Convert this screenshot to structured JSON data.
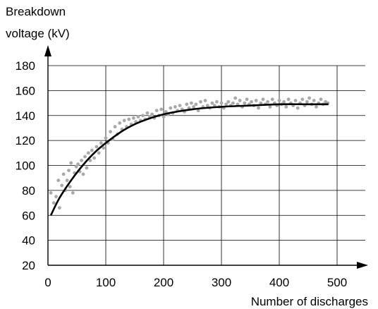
{
  "chart_data": {
    "type": "scatter",
    "ylabel_line1": "Breakdown",
    "ylabel_line2": "voltage (kV)",
    "xlabel": "Number of discharges",
    "xlim": [
      0,
      500
    ],
    "ylim": [
      20,
      180
    ],
    "xticks": [
      0,
      100,
      200,
      300,
      400,
      500
    ],
    "yticks": [
      20,
      40,
      60,
      80,
      100,
      120,
      140,
      160,
      180
    ],
    "grid": true,
    "points": [
      [
        5,
        78
      ],
      [
        10,
        70
      ],
      [
        14,
        75
      ],
      [
        18,
        88
      ],
      [
        20,
        66
      ],
      [
        24,
        84
      ],
      [
        27,
        93
      ],
      [
        30,
        80
      ],
      [
        33,
        88
      ],
      [
        36,
        96
      ],
      [
        38,
        83
      ],
      [
        40,
        102
      ],
      [
        43,
        78
      ],
      [
        46,
        94
      ],
      [
        49,
        99
      ],
      [
        52,
        101
      ],
      [
        55,
        95
      ],
      [
        58,
        104
      ],
      [
        61,
        93
      ],
      [
        64,
        107
      ],
      [
        67,
        98
      ],
      [
        70,
        110
      ],
      [
        73,
        104
      ],
      [
        76,
        112
      ],
      [
        80,
        106
      ],
      [
        84,
        115
      ],
      [
        88,
        110
      ],
      [
        92,
        118
      ],
      [
        96,
        114
      ],
      [
        100,
        122
      ],
      [
        104,
        118
      ],
      [
        108,
        127
      ],
      [
        112,
        121
      ],
      [
        116,
        131
      ],
      [
        120,
        125
      ],
      [
        124,
        134
      ],
      [
        128,
        129
      ],
      [
        132,
        136
      ],
      [
        136,
        131
      ],
      [
        140,
        137
      ],
      [
        144,
        133
      ],
      [
        148,
        138
      ],
      [
        152,
        135
      ],
      [
        156,
        139
      ],
      [
        160,
        136
      ],
      [
        164,
        140
      ],
      [
        168,
        137
      ],
      [
        172,
        142
      ],
      [
        176,
        139
      ],
      [
        180,
        141
      ],
      [
        184,
        138
      ],
      [
        188,
        144
      ],
      [
        192,
        140
      ],
      [
        196,
        145
      ],
      [
        200,
        139
      ],
      [
        204,
        143
      ],
      [
        208,
        141
      ],
      [
        212,
        146
      ],
      [
        216,
        142
      ],
      [
        220,
        147
      ],
      [
        224,
        144
      ],
      [
        228,
        148
      ],
      [
        232,
        145
      ],
      [
        236,
        143
      ],
      [
        240,
        149
      ],
      [
        244,
        146
      ],
      [
        248,
        150
      ],
      [
        252,
        147
      ],
      [
        256,
        149
      ],
      [
        260,
        144
      ],
      [
        264,
        151
      ],
      [
        268,
        147
      ],
      [
        272,
        152
      ],
      [
        276,
        148
      ],
      [
        280,
        146
      ],
      [
        284,
        150
      ],
      [
        288,
        148
      ],
      [
        292,
        151
      ],
      [
        296,
        147
      ],
      [
        300,
        150
      ],
      [
        304,
        146
      ],
      [
        308,
        149
      ],
      [
        312,
        151
      ],
      [
        316,
        148
      ],
      [
        320,
        150
      ],
      [
        324,
        154
      ],
      [
        328,
        149
      ],
      [
        332,
        152
      ],
      [
        336,
        147
      ],
      [
        340,
        150
      ],
      [
        344,
        153
      ],
      [
        348,
        149
      ],
      [
        352,
        151
      ],
      [
        356,
        148
      ],
      [
        360,
        152
      ],
      [
        364,
        146
      ],
      [
        368,
        150
      ],
      [
        372,
        153
      ],
      [
        376,
        149
      ],
      [
        380,
        151
      ],
      [
        384,
        147
      ],
      [
        388,
        153
      ],
      [
        392,
        150
      ],
      [
        396,
        148
      ],
      [
        400,
        152
      ],
      [
        404,
        149
      ],
      [
        408,
        151
      ],
      [
        412,
        147
      ],
      [
        416,
        153
      ],
      [
        420,
        150
      ],
      [
        424,
        148
      ],
      [
        428,
        152
      ],
      [
        432,
        146
      ],
      [
        436,
        150
      ],
      [
        440,
        153
      ],
      [
        444,
        148
      ],
      [
        448,
        151
      ],
      [
        452,
        154
      ],
      [
        456,
        149
      ],
      [
        460,
        152
      ],
      [
        464,
        147
      ],
      [
        468,
        150
      ],
      [
        472,
        153
      ],
      [
        476,
        149
      ],
      [
        480,
        151
      ],
      [
        484,
        150
      ]
    ],
    "fit": {
      "type": "line",
      "x": [
        5,
        20,
        40,
        60,
        80,
        100,
        130,
        160,
        200,
        250,
        300,
        350,
        400,
        450,
        485
      ],
      "y": [
        60,
        74,
        88,
        100,
        110,
        118,
        128,
        135,
        141,
        145,
        147,
        148,
        149,
        149,
        149
      ]
    }
  }
}
